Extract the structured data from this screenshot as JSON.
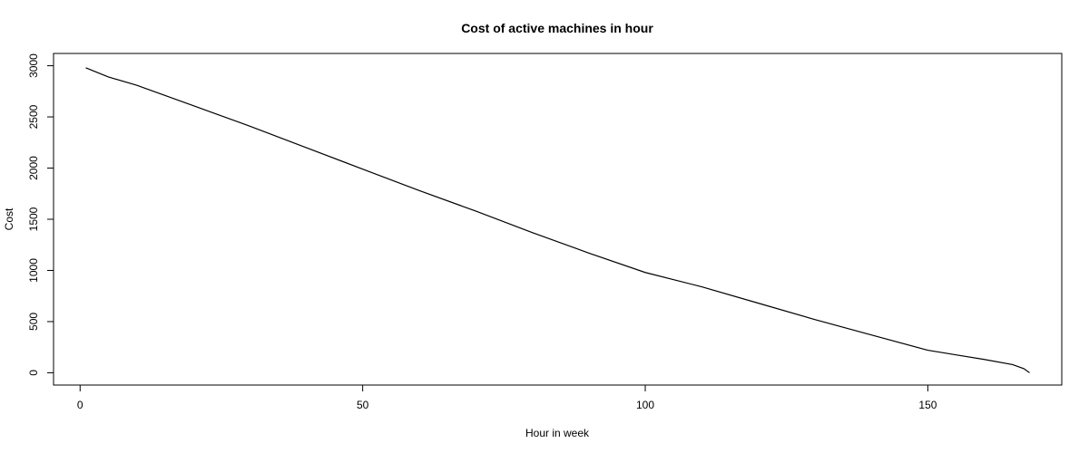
{
  "chart_data": {
    "type": "line",
    "title": "Cost of active machines in hour",
    "xlabel": "Hour in week",
    "ylabel": "Cost",
    "xlim": [
      -4.7,
      173.7
    ],
    "ylim": [
      -120,
      3120
    ],
    "xticks": [
      0,
      50,
      100,
      150
    ],
    "yticks": [
      0,
      500,
      1000,
      1500,
      2000,
      2500,
      3000
    ],
    "grid": false,
    "legend": "none",
    "line_color": "#000000",
    "series": [
      {
        "x": [
          1,
          5,
          10,
          20,
          30,
          40,
          50,
          60,
          70,
          80,
          90,
          100,
          110,
          120,
          130,
          140,
          150,
          155,
          160,
          165,
          167,
          168
        ],
        "values": [
          2980,
          2890,
          2810,
          2610,
          2410,
          2200,
          1990,
          1780,
          1580,
          1370,
          1170,
          980,
          840,
          680,
          520,
          370,
          220,
          175,
          130,
          80,
          40,
          0
        ]
      }
    ]
  }
}
